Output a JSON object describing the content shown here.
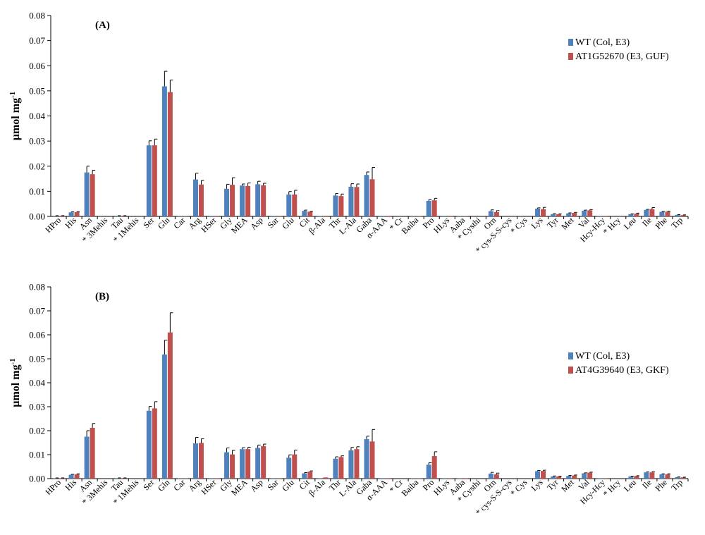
{
  "chart_data": [
    {
      "type": "bar",
      "panel_label": "(A)",
      "ylabel": "µmol mg",
      "ylabel_superscript": "-1",
      "ylim": [
        0,
        0.08
      ],
      "yticks": [
        "0.00",
        "0.01",
        "0.02",
        "0.03",
        "0.04",
        "0.05",
        "0.06",
        "0.07",
        "0.08"
      ],
      "ytick_values": [
        0,
        0.01,
        0.02,
        0.03,
        0.04,
        0.05,
        0.06,
        0.07,
        0.08
      ],
      "legend_position": "right",
      "categories": [
        "HPro",
        "His",
        "Asn",
        "* 3Mehis",
        "Tau",
        "* 1Mehis",
        "Ser",
        "Gln",
        "Car",
        "Arg",
        "HSer",
        "Gly",
        "MEA",
        "Asp",
        "Sar",
        "Glu",
        "Cit",
        "β-Ala",
        "Thr",
        "L-Ala",
        "Gaba",
        "α-AAA",
        "* Cr",
        "Baiba",
        "Pro",
        "HLys",
        "Aaba",
        "* Cysthi",
        "Orn",
        "* cys-S-S-cys",
        "* Cys",
        "Lys",
        "Tyr",
        "Met",
        "Val",
        "Hcy-Hcy",
        "* Hcy",
        "Leu",
        "Ile",
        "Phe",
        "Trp"
      ],
      "series": [
        {
          "name": "WT (Col, E3)",
          "color": "#4f81bd",
          "values": [
            0.0002,
            0.0016,
            0.0175,
            0,
            0.0002,
            0,
            0.0283,
            0.0518,
            0.0001,
            0.0147,
            0.0002,
            0.011,
            0.0123,
            0.0128,
            0.0002,
            0.0087,
            0.0022,
            0.0002,
            0.0083,
            0.0118,
            0.0165,
            0.0002,
            0,
            0.0001,
            0.0062,
            0.0002,
            0.0001,
            0,
            0.0021,
            0,
            0,
            0.0031,
            0.0009,
            0.0012,
            0.0023,
            0.0002,
            0,
            0.0009,
            0.0026,
            0.0018,
            0.0006
          ],
          "errors": [
            0.0001,
            0.0002,
            0.0025,
            0,
            0.0001,
            0,
            0.0018,
            0.006,
            0,
            0.0025,
            0,
            0.0018,
            0.0006,
            0.0012,
            0,
            0.0012,
            0.0003,
            0,
            0.0008,
            0.0012,
            0.0012,
            0,
            0,
            0,
            0.0005,
            0,
            0,
            0,
            0.0005,
            0,
            0,
            0.0003,
            0.0002,
            0.0002,
            0.0002,
            0,
            0,
            0.0001,
            0.0002,
            0.0002,
            0.0001
          ]
        },
        {
          "name": "AT1G52670 (E3, GUF)",
          "color": "#c0504d",
          "values": [
            0.0002,
            0.0017,
            0.0168,
            0,
            0.0002,
            0,
            0.0283,
            0.0495,
            0.0001,
            0.0127,
            0.0002,
            0.0126,
            0.0121,
            0.0124,
            0.0002,
            0.0087,
            0.0019,
            0.0002,
            0.0081,
            0.0117,
            0.0148,
            0.0002,
            0,
            0.0001,
            0.0064,
            0.0002,
            0.0001,
            0,
            0.0017,
            0,
            0,
            0.0029,
            0.0009,
            0.0014,
            0.0024,
            0.0002,
            0,
            0.0011,
            0.0029,
            0.0019,
            0.0005
          ],
          "errors": [
            0.0001,
            0.0002,
            0.0016,
            0,
            0.0001,
            0,
            0.0025,
            0.0048,
            0,
            0.0016,
            0,
            0.0028,
            0.0012,
            0.0008,
            0,
            0.0017,
            0.0001,
            0,
            0.0008,
            0.0012,
            0.0047,
            0,
            0,
            0,
            0.0008,
            0,
            0,
            0,
            0.0006,
            0,
            0,
            0.0007,
            0.0001,
            0.0002,
            0.0003,
            0,
            0,
            0.0002,
            0.0006,
            0.0002,
            0.0001
          ]
        }
      ]
    },
    {
      "type": "bar",
      "panel_label": "(B)",
      "ylabel": "µmol mg",
      "ylabel_superscript": "-1",
      "ylim": [
        0,
        0.08
      ],
      "yticks": [
        "0.00",
        "0.01",
        "0.02",
        "0.03",
        "0.04",
        "0.05",
        "0.06",
        "0.07",
        "0.08"
      ],
      "ytick_values": [
        0,
        0.01,
        0.02,
        0.03,
        0.04,
        0.05,
        0.06,
        0.07,
        0.08
      ],
      "legend_position": "right",
      "categories": [
        "HPro",
        "His",
        "Asn",
        "* 3Mehis",
        "Tau",
        "* 1Mehis",
        "Ser",
        "Gln",
        "Car",
        "Arg",
        "HSer",
        "Gly",
        "MEA",
        "Asp",
        "Sar",
        "Glu",
        "Cit",
        "β-Ala",
        "Thr",
        "L-Ala",
        "Gaba",
        "α-AAA",
        "* Cr",
        "Baiba",
        "Pro",
        "HLys",
        "Aaba",
        "* Cysthi",
        "Orn",
        "* cys-S-S-cys",
        "* Cys",
        "Lys",
        "Tyr",
        "Met",
        "Val",
        "Hcy-Hcy",
        "* Hcy",
        "Leu",
        "Ile",
        "Phe",
        "Trp"
      ],
      "series": [
        {
          "name": "WT (Col, E3)",
          "color": "#4f81bd",
          "values": [
            0.0002,
            0.0016,
            0.0175,
            0,
            0.0002,
            0,
            0.0283,
            0.0518,
            0.0001,
            0.0147,
            0.0002,
            0.011,
            0.0123,
            0.0128,
            0.0002,
            0.0087,
            0.0022,
            0.0002,
            0.0083,
            0.0118,
            0.0165,
            0.0002,
            0,
            0.0001,
            0.0058,
            0.0002,
            0.0001,
            0,
            0.0021,
            0,
            0,
            0.0031,
            0.0009,
            0.0011,
            0.0022,
            0.0002,
            0,
            0.0009,
            0.0026,
            0.0018,
            0.0006
          ],
          "errors": [
            0.0001,
            0.0002,
            0.0025,
            0,
            0.0001,
            0,
            0.0018,
            0.006,
            0,
            0.0025,
            0,
            0.0018,
            0.0006,
            0.0012,
            0,
            0.0012,
            0.0003,
            0,
            0.0008,
            0.0012,
            0.0012,
            0,
            0,
            0,
            0.0008,
            0,
            0,
            0,
            0.0005,
            0,
            0,
            0.0003,
            0.0002,
            0.0002,
            0.0002,
            0,
            0,
            0.0001,
            0.0002,
            0.0002,
            0.0001
          ]
        },
        {
          "name": "AT4G39640 (E3, GKF)",
          "color": "#c0504d",
          "values": [
            0.0002,
            0.0018,
            0.0212,
            0,
            0.0002,
            0,
            0.0293,
            0.061,
            0.0001,
            0.0149,
            0.0002,
            0.0101,
            0.0123,
            0.0136,
            0.0002,
            0.0101,
            0.0029,
            0.0005,
            0.009,
            0.0123,
            0.0155,
            0.0002,
            0,
            0.0001,
            0.0094,
            0.0002,
            0.0002,
            0,
            0.0018,
            0,
            0,
            0.0032,
            0.0009,
            0.0013,
            0.0025,
            0.0002,
            0,
            0.0011,
            0.0026,
            0.0018,
            0.0005
          ],
          "errors": [
            0.0001,
            0.0002,
            0.0018,
            0,
            0.0001,
            0,
            0.0028,
            0.0082,
            0,
            0.0017,
            0,
            0.0017,
            0.0008,
            0.0008,
            0,
            0.0018,
            0.0003,
            0,
            0.0005,
            0.001,
            0.005,
            0,
            0,
            0,
            0.0018,
            0,
            0,
            0,
            0.0005,
            0,
            0,
            0.0003,
            0.0001,
            0.0002,
            0.0002,
            0,
            0,
            0.0001,
            0.0003,
            0.0002,
            0.0001
          ]
        }
      ]
    }
  ]
}
